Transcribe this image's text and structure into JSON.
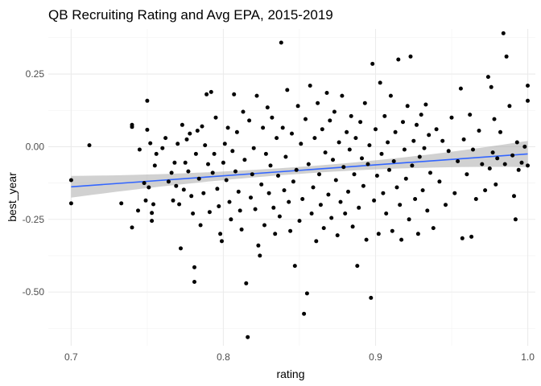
{
  "chart_data": {
    "type": "scatter",
    "title": "QB Recruiting Rating and Avg EPA, 2015-2019",
    "xlabel": "rating",
    "ylabel": "best_year",
    "xlim": [
      0.685,
      1.005
    ],
    "ylim": [
      -0.685,
      0.405
    ],
    "x_ticks": [
      {
        "value": 0.7,
        "label": "0.7"
      },
      {
        "value": 0.8,
        "label": "0.8"
      },
      {
        "value": 0.9,
        "label": "0.9"
      },
      {
        "value": 1.0,
        "label": "1.0"
      }
    ],
    "y_ticks": [
      {
        "value": 0.25,
        "label": "0.25"
      },
      {
        "value": 0.0,
        "label": "0.00"
      },
      {
        "value": -0.25,
        "label": "-0.25"
      },
      {
        "value": -0.5,
        "label": "-0.50"
      }
    ],
    "grid": true,
    "point_color": "#000000",
    "line_color": "#3366FF",
    "band_color": "#999999",
    "fit": {
      "method": "linear",
      "x": [
        0.7,
        1.0
      ],
      "y": [
        -0.138,
        -0.025
      ],
      "ci_lower": [
        -0.175,
        -0.075
      ],
      "ci_upper": [
        -0.1,
        0.015
      ]
    },
    "points": [
      [
        0.7,
        -0.115
      ],
      [
        0.7,
        -0.195
      ],
      [
        0.712,
        0.005
      ],
      [
        0.733,
        -0.195
      ],
      [
        0.74,
        0.075
      ],
      [
        0.74,
        0.068
      ],
      [
        0.74,
        -0.278
      ],
      [
        0.744,
        -0.22
      ],
      [
        0.745,
        -0.01
      ],
      [
        0.748,
        -0.125
      ],
      [
        0.749,
        -0.185
      ],
      [
        0.75,
        0.158
      ],
      [
        0.75,
        0.058
      ],
      [
        0.751,
        -0.14
      ],
      [
        0.752,
        0.012
      ],
      [
        0.753,
        -0.228
      ],
      [
        0.753,
        -0.255
      ],
      [
        0.754,
        -0.198
      ],
      [
        0.755,
        -0.065
      ],
      [
        0.756,
        -0.025
      ],
      [
        0.76,
        -0.005
      ],
      [
        0.762,
        0.03
      ],
      [
        0.764,
        -0.12
      ],
      [
        0.766,
        -0.09
      ],
      [
        0.767,
        -0.185
      ],
      [
        0.768,
        -0.055
      ],
      [
        0.769,
        -0.135
      ],
      [
        0.77,
        0.01
      ],
      [
        0.771,
        -0.198
      ],
      [
        0.772,
        -0.35
      ],
      [
        0.773,
        0.075
      ],
      [
        0.774,
        -0.148
      ],
      [
        0.775,
        -0.055
      ],
      [
        0.776,
        0.025
      ],
      [
        0.777,
        -0.085
      ],
      [
        0.778,
        0.045
      ],
      [
        0.779,
        -0.17
      ],
      [
        0.78,
        -0.23
      ],
      [
        0.781,
        -0.415
      ],
      [
        0.781,
        -0.465
      ],
      [
        0.782,
        -0.025
      ],
      [
        0.783,
        0.055
      ],
      [
        0.784,
        -0.11
      ],
      [
        0.785,
        -0.27
      ],
      [
        0.786,
        0.07
      ],
      [
        0.787,
        -0.16
      ],
      [
        0.788,
        0.005
      ],
      [
        0.789,
        0.18
      ],
      [
        0.79,
        -0.06
      ],
      [
        0.791,
        -0.225
      ],
      [
        0.792,
        0.188
      ],
      [
        0.793,
        -0.09
      ],
      [
        0.794,
        -0.025
      ],
      [
        0.795,
        0.1
      ],
      [
        0.796,
        -0.145
      ],
      [
        0.797,
        -0.205
      ],
      [
        0.798,
        -0.3
      ],
      [
        0.799,
        -0.325
      ],
      [
        0.8,
        -0.055
      ],
      [
        0.801,
        0.01
      ],
      [
        0.802,
        -0.115
      ],
      [
        0.803,
        0.065
      ],
      [
        0.804,
        -0.19
      ],
      [
        0.805,
        -0.25
      ],
      [
        0.806,
        -0.015
      ],
      [
        0.807,
        0.18
      ],
      [
        0.808,
        -0.085
      ],
      [
        0.809,
        0.05
      ],
      [
        0.81,
        -0.155
      ],
      [
        0.811,
        -0.22
      ],
      [
        0.812,
        -0.285
      ],
      [
        0.813,
        0.12
      ],
      [
        0.814,
        -0.045
      ],
      [
        0.815,
        -0.47
      ],
      [
        0.816,
        -0.655
      ],
      [
        0.817,
        0.09
      ],
      [
        0.818,
        -0.175
      ],
      [
        0.819,
        -0.095
      ],
      [
        0.82,
        -0.005
      ],
      [
        0.821,
        -0.215
      ],
      [
        0.822,
        0.175
      ],
      [
        0.823,
        -0.34
      ],
      [
        0.824,
        -0.375
      ],
      [
        0.825,
        -0.13
      ],
      [
        0.826,
        0.065
      ],
      [
        0.827,
        -0.27
      ],
      [
        0.828,
        -0.025
      ],
      [
        0.829,
        0.135
      ],
      [
        0.83,
        -0.16
      ],
      [
        0.831,
        -0.065
      ],
      [
        0.832,
        0.1
      ],
      [
        0.833,
        -0.21
      ],
      [
        0.834,
        -0.3
      ],
      [
        0.835,
        0.03
      ],
      [
        0.836,
        -0.1
      ],
      [
        0.837,
        -0.24
      ],
      [
        0.838,
        0.358
      ],
      [
        0.839,
        0.065
      ],
      [
        0.84,
        -0.15
      ],
      [
        0.841,
        -0.035
      ],
      [
        0.842,
        0.195
      ],
      [
        0.843,
        -0.19
      ],
      [
        0.844,
        -0.29
      ],
      [
        0.845,
        0.045
      ],
      [
        0.846,
        -0.12
      ],
      [
        0.847,
        -0.41
      ],
      [
        0.848,
        -0.08
      ],
      [
        0.849,
        0.14
      ],
      [
        0.85,
        -0.255
      ],
      [
        0.851,
        0.01
      ],
      [
        0.852,
        -0.18
      ],
      [
        0.853,
        -0.575
      ],
      [
        0.854,
        0.095
      ],
      [
        0.855,
        -0.505
      ],
      [
        0.856,
        -0.06
      ],
      [
        0.857,
        0.21
      ],
      [
        0.858,
        -0.23
      ],
      [
        0.859,
        -0.14
      ],
      [
        0.86,
        0.03
      ],
      [
        0.861,
        -0.325
      ],
      [
        0.862,
        0.15
      ],
      [
        0.863,
        -0.095
      ],
      [
        0.864,
        -0.2
      ],
      [
        0.865,
        0.06
      ],
      [
        0.866,
        -0.28
      ],
      [
        0.867,
        -0.02
      ],
      [
        0.868,
        0.185
      ],
      [
        0.869,
        -0.165
      ],
      [
        0.87,
        0.09
      ],
      [
        0.871,
        -0.245
      ],
      [
        0.872,
        -0.045
      ],
      [
        0.873,
        0.12
      ],
      [
        0.874,
        -0.115
      ],
      [
        0.875,
        -0.305
      ],
      [
        0.876,
        0.015
      ],
      [
        0.877,
        -0.19
      ],
      [
        0.878,
        0.175
      ],
      [
        0.879,
        -0.07
      ],
      [
        0.88,
        -0.23
      ],
      [
        0.881,
        0.05
      ],
      [
        0.882,
        -0.155
      ],
      [
        0.883,
        -0.01
      ],
      [
        0.884,
        0.105
      ],
      [
        0.885,
        -0.275
      ],
      [
        0.886,
        -0.095
      ],
      [
        0.887,
        0.03
      ],
      [
        0.888,
        -0.41
      ],
      [
        0.889,
        -0.21
      ],
      [
        0.89,
        0.085
      ],
      [
        0.891,
        -0.04
      ],
      [
        0.892,
        -0.135
      ],
      [
        0.893,
        0.15
      ],
      [
        0.894,
        -0.32
      ],
      [
        0.895,
        -0.06
      ],
      [
        0.896,
        0.005
      ],
      [
        0.897,
        -0.52
      ],
      [
        0.898,
        0.285
      ],
      [
        0.899,
        -0.185
      ],
      [
        0.9,
        0.06
      ],
      [
        0.901,
        -0.1
      ],
      [
        0.902,
        -0.3
      ],
      [
        0.903,
        0.22
      ],
      [
        0.904,
        -0.025
      ],
      [
        0.905,
        -0.16
      ],
      [
        0.906,
        0.105
      ],
      [
        0.907,
        -0.23
      ],
      [
        0.908,
        0.015
      ],
      [
        0.909,
        -0.08
      ],
      [
        0.91,
        0.175
      ],
      [
        0.911,
        -0.29
      ],
      [
        0.912,
        -0.05
      ],
      [
        0.913,
        0.05
      ],
      [
        0.914,
        -0.14
      ],
      [
        0.915,
        0.3
      ],
      [
        0.916,
        -0.2
      ],
      [
        0.917,
        -0.32
      ],
      [
        0.918,
        0.085
      ],
      [
        0.919,
        -0.01
      ],
      [
        0.92,
        -0.11
      ],
      [
        0.921,
        0.14
      ],
      [
        0.922,
        -0.25
      ],
      [
        0.923,
        0.31
      ],
      [
        0.924,
        -0.065
      ],
      [
        0.925,
        0.02
      ],
      [
        0.926,
        -0.18
      ],
      [
        0.927,
        0.075
      ],
      [
        0.928,
        -0.3
      ],
      [
        0.929,
        -0.035
      ],
      [
        0.93,
        0.11
      ],
      [
        0.931,
        -0.15
      ],
      [
        0.932,
        -0.005
      ],
      [
        0.933,
        0.145
      ],
      [
        0.934,
        -0.22
      ],
      [
        0.935,
        0.04
      ],
      [
        0.936,
        -0.09
      ],
      [
        0.938,
        -0.28
      ],
      [
        0.94,
        0.06
      ],
      [
        0.942,
        -0.12
      ],
      [
        0.944,
        0.02
      ],
      [
        0.946,
        -0.2
      ],
      [
        0.948,
        -0.015
      ],
      [
        0.95,
        0.1
      ],
      [
        0.952,
        -0.16
      ],
      [
        0.954,
        -0.05
      ],
      [
        0.956,
        0.2
      ],
      [
        0.957,
        -0.315
      ],
      [
        0.958,
        0.025
      ],
      [
        0.96,
        -0.095
      ],
      [
        0.962,
        0.11
      ],
      [
        0.963,
        -0.31
      ],
      [
        0.964,
        -0.01
      ],
      [
        0.966,
        -0.18
      ],
      [
        0.968,
        0.055
      ],
      [
        0.97,
        -0.06
      ],
      [
        0.972,
        -0.15
      ],
      [
        0.974,
        0.24
      ],
      [
        0.975,
        -0.075
      ],
      [
        0.976,
        0.205
      ],
      [
        0.977,
        -0.02
      ],
      [
        0.978,
        0.095
      ],
      [
        0.979,
        -0.13
      ],
      [
        0.98,
        -0.04
      ],
      [
        0.982,
        0.05
      ],
      [
        0.984,
        0.39
      ],
      [
        0.985,
        -0.06
      ],
      [
        0.986,
        0.31
      ],
      [
        0.988,
        0.14
      ],
      [
        0.99,
        -0.03
      ],
      [
        0.991,
        -0.17
      ],
      [
        0.992,
        -0.25
      ],
      [
        0.993,
        0.015
      ],
      [
        0.994,
        -0.08
      ],
      [
        0.996,
        -0.055
      ],
      [
        0.998,
        0.0
      ],
      [
        1.0,
        0.21
      ],
      [
        1.0,
        0.158
      ],
      [
        1.0,
        -0.065
      ]
    ]
  }
}
